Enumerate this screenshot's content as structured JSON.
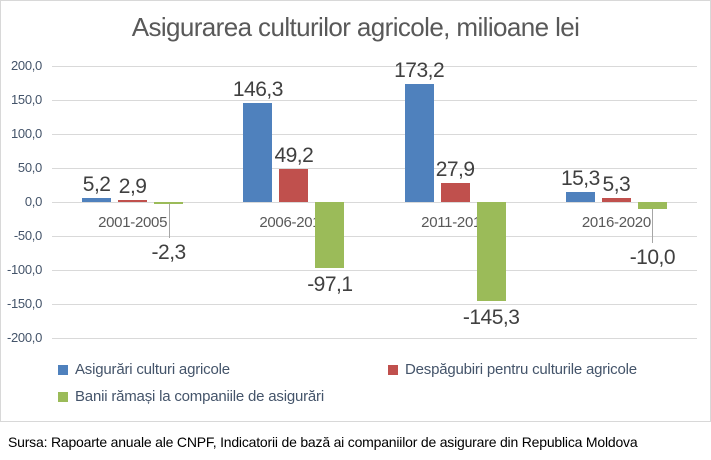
{
  "chart_data": {
    "type": "bar",
    "title": "Asigurarea culturilor agricole, milioane lei",
    "categories": [
      "2001-2005",
      "2006-2010",
      "2011-2015",
      "2016-2020"
    ],
    "series": [
      {
        "name": "Asigurări culturi agricole",
        "color": "#4F81BD",
        "values": [
          5.2,
          146.3,
          173.2,
          15.3
        ]
      },
      {
        "name": "Despăgubiri pentru culturile agricole",
        "color": "#C0504D",
        "values": [
          2.9,
          49.2,
          27.9,
          5.3
        ]
      },
      {
        "name": "Banii rămași la companiile de asigurări",
        "color": "#9BBB59",
        "values": [
          -2.3,
          -97.1,
          -145.3,
          -10.0
        ]
      }
    ],
    "ylim": [
      -200,
      200
    ],
    "ytick_step": 50,
    "yticks": [
      "200,0",
      "150,0",
      "100,0",
      "50,0",
      "0,0",
      "-50,0",
      "-100,0",
      "-150,0",
      "-200,0"
    ],
    "decimal_separator": ",",
    "grid": true,
    "legend_position": "bottom",
    "leader_label_positions": [
      {
        "series": 2,
        "category": 0
      },
      {
        "series": 2,
        "category": 3
      }
    ]
  },
  "source_note": "Sursa: Rapoarte anuale ale CNPF, Indicatorii de bază ai companiilor de asigurare din Republica Moldova",
  "style": {
    "title_color": "#595959",
    "axis_text_color": "#44546A",
    "category_text_color": "#595959",
    "data_label_color": "#404040",
    "legend_text_color": "#44546A",
    "gridline_color": "#D9D9D9",
    "leader_color": "#A6A6A6",
    "border_color": "#D8D8D8",
    "source_text_color": "#000000",
    "background": "#FFFFFF"
  }
}
